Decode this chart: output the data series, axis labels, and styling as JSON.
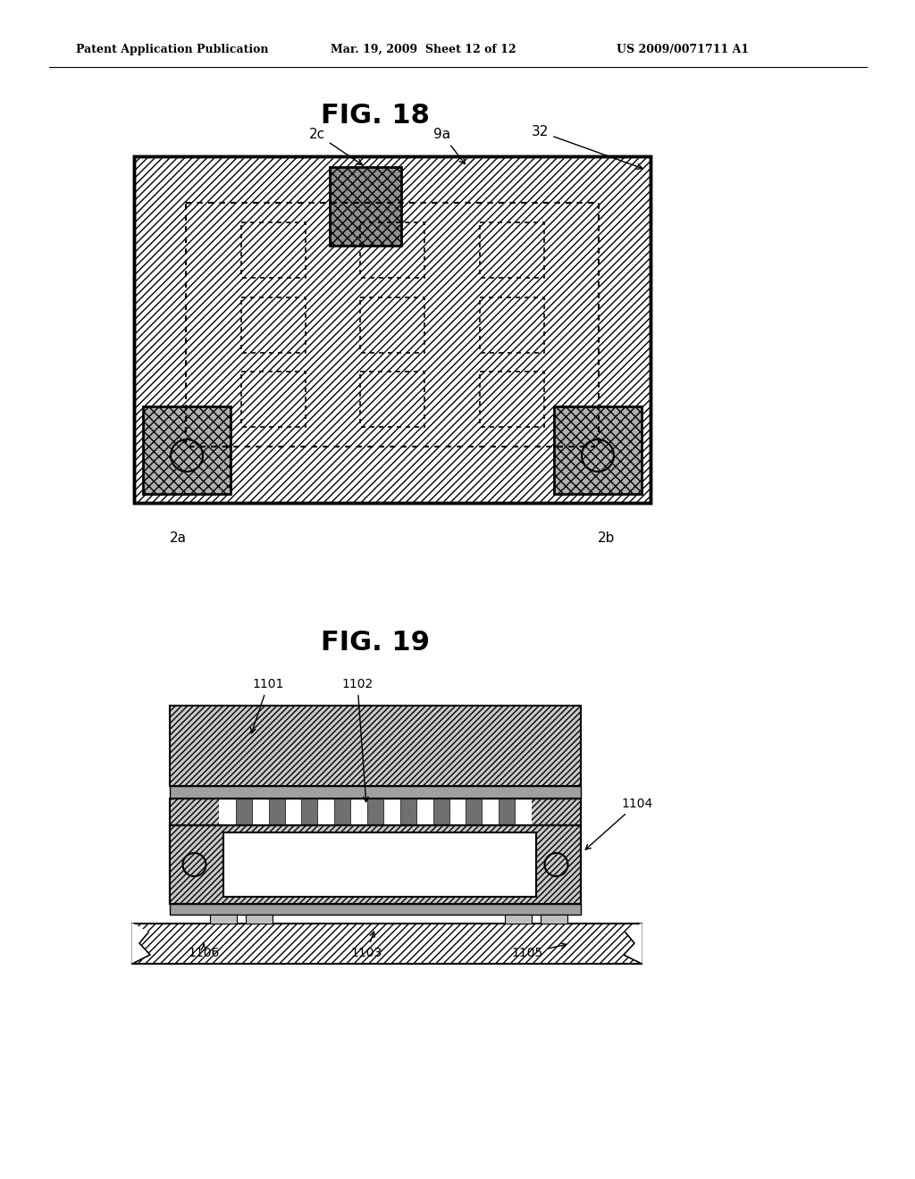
{
  "header_left": "Patent Application Publication",
  "header_mid": "Mar. 19, 2009  Sheet 12 of 12",
  "header_right": "US 2009/0071711 A1",
  "fig18_title": "FIG. 18",
  "fig19_title": "FIG. 19",
  "bg_color": "#ffffff",
  "line_color": "#000000",
  "label_2c": "2c",
  "label_9a": "9a",
  "label_32": "32",
  "label_2a": "2a",
  "label_2b": "2b",
  "label_1101": "1101",
  "label_1102": "1102",
  "label_1103": "1103",
  "label_1104": "1104",
  "label_1105": "1105",
  "label_1106": "1106"
}
